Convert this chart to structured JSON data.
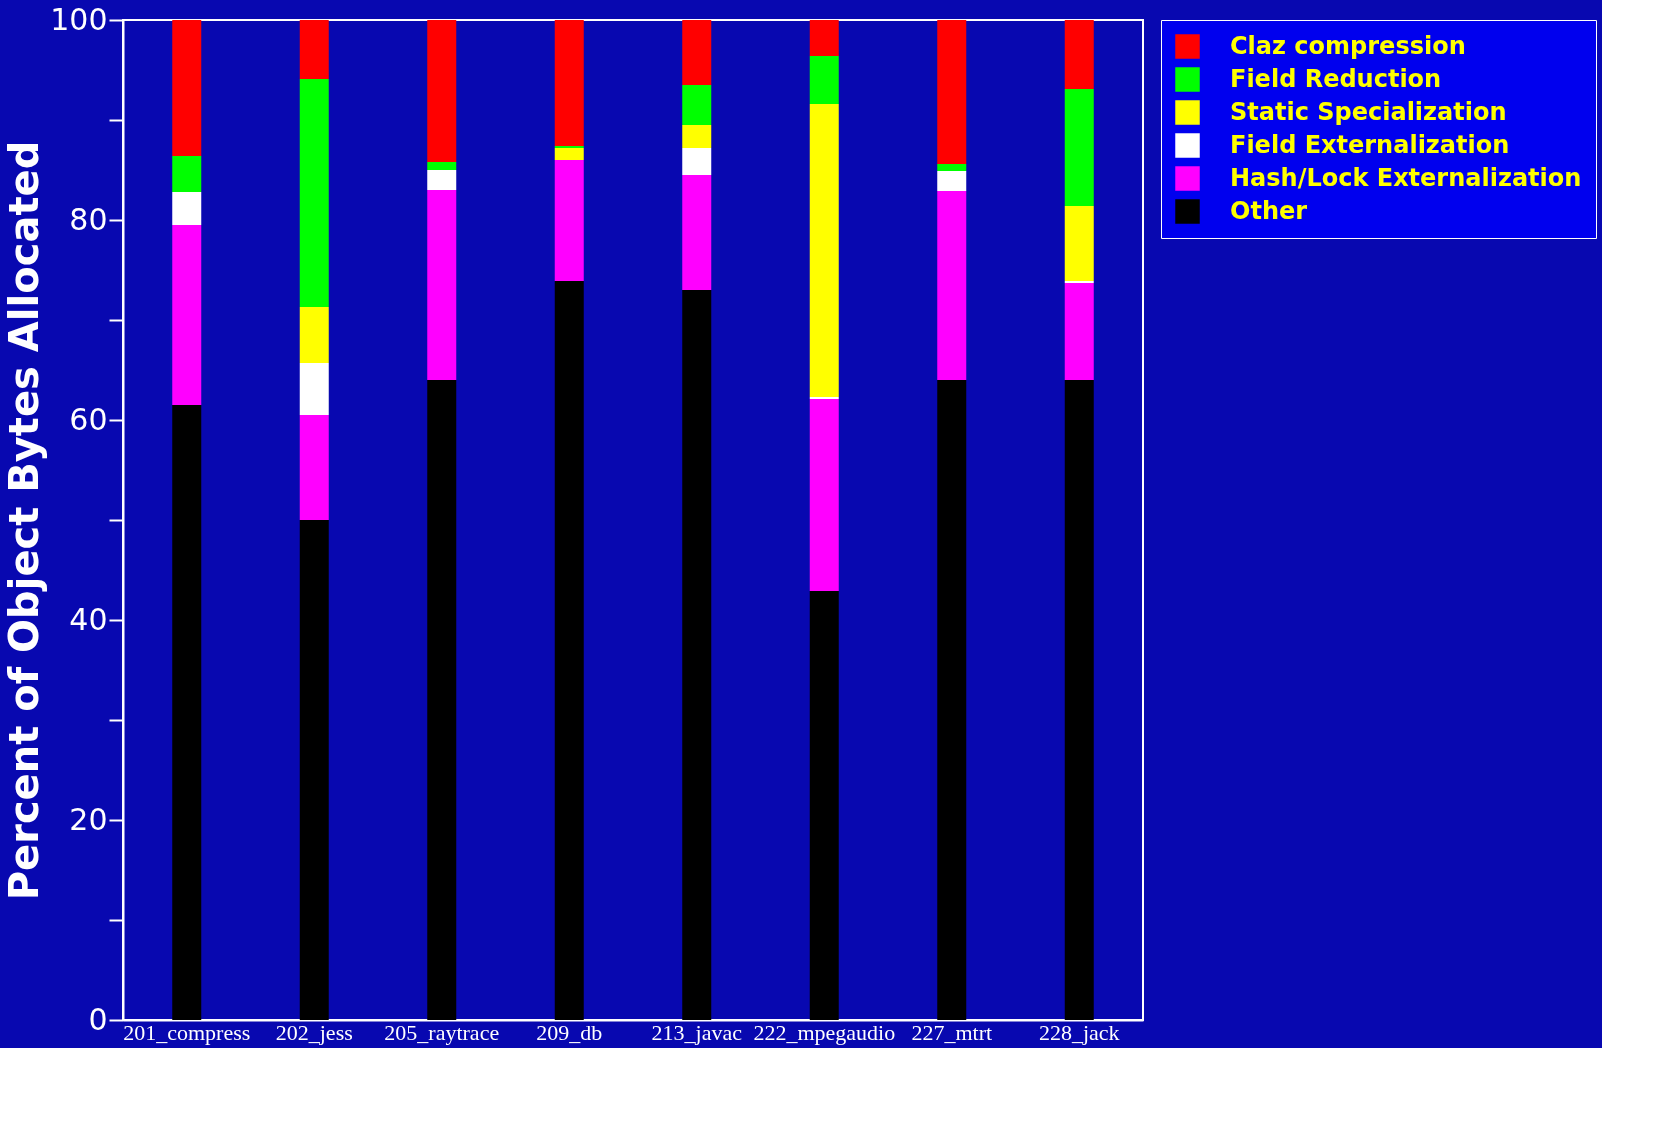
{
  "chart_data": {
    "type": "bar",
    "stacked": true,
    "ylabel": "Percent of Object Bytes Allocated",
    "categories": [
      "201_compress",
      "202_jess",
      "205_raytrace",
      "209_db",
      "213_javac",
      "222_mpegaudio",
      "227_mtrt",
      "228_jack"
    ],
    "series": [
      {
        "name": "Other",
        "color": "#000000",
        "values": [
          61.5,
          50,
          64,
          73.9,
          73,
          42.9,
          64,
          64
        ]
      },
      {
        "name": "Hash/Lock Externalization",
        "color": "#ff00ff",
        "values": [
          18,
          10.5,
          19,
          12.1,
          11.5,
          19.2,
          18.9,
          9.7
        ]
      },
      {
        "name": "Field Externalization",
        "color": "#ffffff",
        "values": [
          3.3,
          5.2,
          2,
          0,
          2.7,
          0.2,
          2,
          0.2
        ]
      },
      {
        "name": "Static Specialization",
        "color": "#ffff00",
        "values": [
          0,
          5.6,
          0,
          1.2,
          2.3,
          29.3,
          0,
          7.5
        ]
      },
      {
        "name": "Field Reduction",
        "color": "#00ff00",
        "values": [
          3.6,
          22.8,
          0.8,
          0.2,
          4,
          4.8,
          0.7,
          11.7
        ]
      },
      {
        "name": "Claz compression",
        "color": "#ff0000",
        "values": [
          13.6,
          5.9,
          14.2,
          12.6,
          6.5,
          3.6,
          14.4,
          6.9
        ]
      }
    ],
    "ylim": [
      0,
      100
    ],
    "yticks": [
      0,
      {
        "value": 10,
        "label": null
      },
      20,
      {
        "value": 30,
        "label": null
      },
      40,
      {
        "value": 50,
        "label": null
      },
      60,
      {
        "value": 70,
        "label": null
      },
      80,
      {
        "value": 90,
        "label": null
      },
      100
    ],
    "grid": false,
    "legend": "right"
  }
}
